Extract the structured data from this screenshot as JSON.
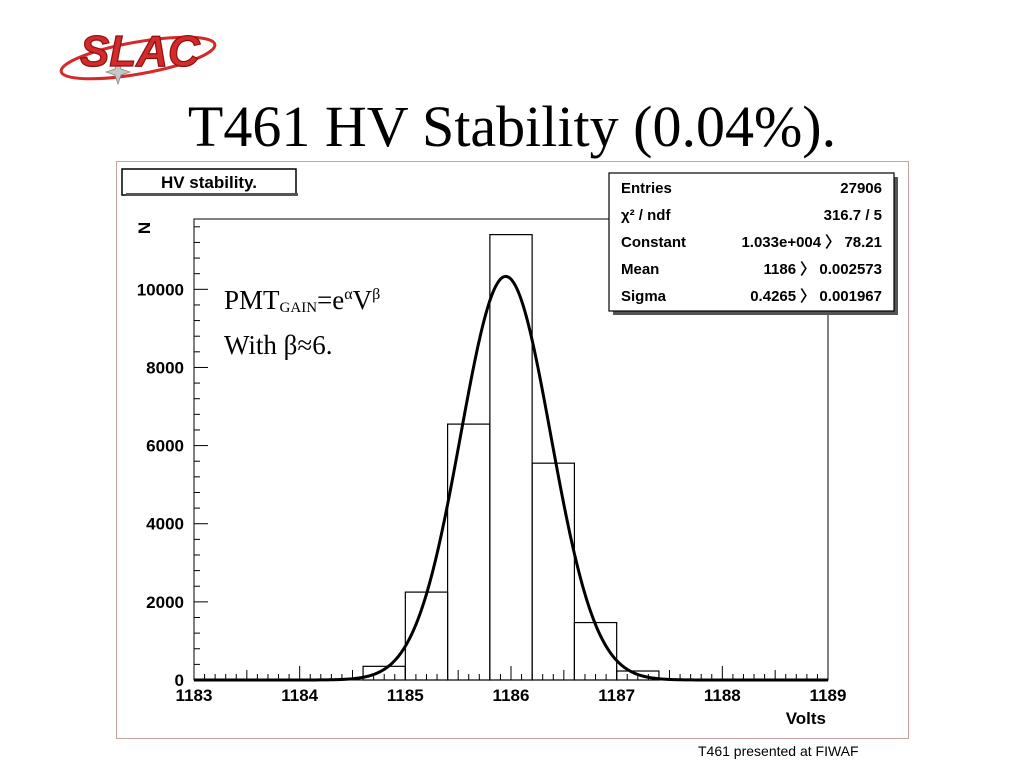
{
  "logo": {
    "text": "SLAC",
    "colors": {
      "red": "#d42a2a",
      "dark": "#8b1010",
      "star": "#c8c8c8"
    }
  },
  "slide": {
    "title": "T461 HV Stability (0.04%).",
    "footer": "T461 presented at FIWAF"
  },
  "annotation": {
    "line1": {
      "base": "PMT",
      "sub": "GAIN",
      "eq": "=e",
      "sup1": "α",
      "v": "V",
      "sup2": "β"
    },
    "line2": "With β≈6."
  },
  "stats": {
    "rows": [
      {
        "label": "Entries",
        "value": "27906"
      },
      {
        "label": "χ² / ndf",
        "value": "316.7 / 5"
      },
      {
        "label": "Constant",
        "value": "1.033e+004 〉 78.21"
      },
      {
        "label": "Mean",
        "value": "1186 〉 0.002573"
      },
      {
        "label": "Sigma",
        "value": "0.4265 〉 0.001967"
      }
    ]
  },
  "chart_data": {
    "type": "bar",
    "title": "HV stability.",
    "xlabel": "Volts",
    "ylabel": "N",
    "xlim": [
      1183,
      1189
    ],
    "ylim": [
      0,
      11800
    ],
    "xticks": [
      1183,
      1184,
      1185,
      1186,
      1187,
      1188,
      1189
    ],
    "xtick_labels": [
      "1183",
      "1184",
      "1185",
      "1186",
      "1187",
      "1188",
      "1189"
    ],
    "yticks": [
      0,
      2000,
      4000,
      6000,
      8000,
      10000
    ],
    "ytick_labels": [
      "0",
      "2000",
      "4000",
      "6000",
      "8000",
      "10000"
    ],
    "bin_edges": [
      1184.6,
      1185.0,
      1185.4,
      1185.8,
      1186.2,
      1186.6,
      1187.0,
      1187.4
    ],
    "values": [
      350,
      2250,
      6550,
      11400,
      5550,
      1470,
      230
    ],
    "fit": {
      "function": "gaus",
      "constant": 10330,
      "mean": 1185.95,
      "sigma": 0.4265
    },
    "grid": false,
    "legend": "top-right"
  }
}
